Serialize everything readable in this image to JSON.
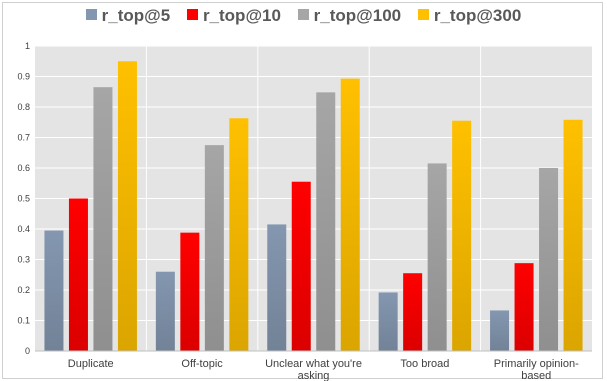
{
  "chart_data": {
    "type": "bar",
    "categories": [
      "Duplicate",
      "Off-topic",
      "Unclear what you're asking",
      "Too broad",
      "Primarily opinion-based"
    ],
    "category_display_lines": [
      [
        "Duplicate"
      ],
      [
        "Off-topic"
      ],
      [
        "Unclear what you're",
        "asking"
      ],
      [
        "Too broad"
      ],
      [
        "Primarily opinion-",
        "based"
      ]
    ],
    "series": [
      {
        "name": "r_top@5",
        "color": "#8497b0",
        "values": [
          0.395,
          0.26,
          0.415,
          0.192,
          0.133
        ]
      },
      {
        "name": "r_top@10",
        "color": "#ff0000",
        "values": [
          0.5,
          0.388,
          0.555,
          0.255,
          0.288
        ]
      },
      {
        "name": "r_top@100",
        "color": "#a6a6a6",
        "values": [
          0.865,
          0.675,
          0.848,
          0.615,
          0.6
        ]
      },
      {
        "name": "r_top@300",
        "color": "#ffc000",
        "values": [
          0.95,
          0.763,
          0.893,
          0.755,
          0.758
        ]
      }
    ],
    "y_ticks": [
      "0",
      "0.1",
      "0.2",
      "0.3",
      "0.4",
      "0.5",
      "0.6",
      "0.7",
      "0.8",
      "0.9",
      "1"
    ],
    "ylim": [
      0,
      1
    ],
    "grid": true,
    "legend_position": "top",
    "title": "",
    "xlabel": "",
    "ylabel": ""
  }
}
